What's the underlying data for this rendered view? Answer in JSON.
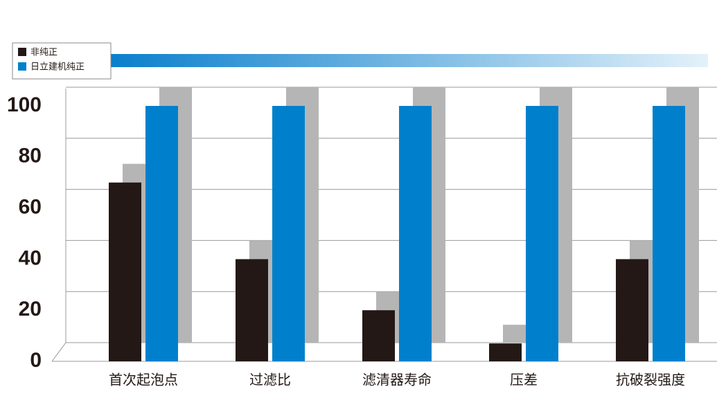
{
  "chart_data": {
    "type": "bar",
    "categories": [
      "首次起泡点",
      "过滤比",
      "滤清器寿命",
      "压差",
      "抗破裂强度"
    ],
    "series": [
      {
        "name": "非纯正",
        "color": "#231815",
        "values": [
          70,
          40,
          20,
          7,
          40
        ]
      },
      {
        "name": "日立建机纯正",
        "color": "#0080cc",
        "values": [
          100,
          100,
          100,
          100,
          100
        ]
      }
    ],
    "ylim": [
      0,
      100
    ],
    "yticks": [
      0,
      20,
      40,
      60,
      80,
      100
    ],
    "grid": true
  }
}
